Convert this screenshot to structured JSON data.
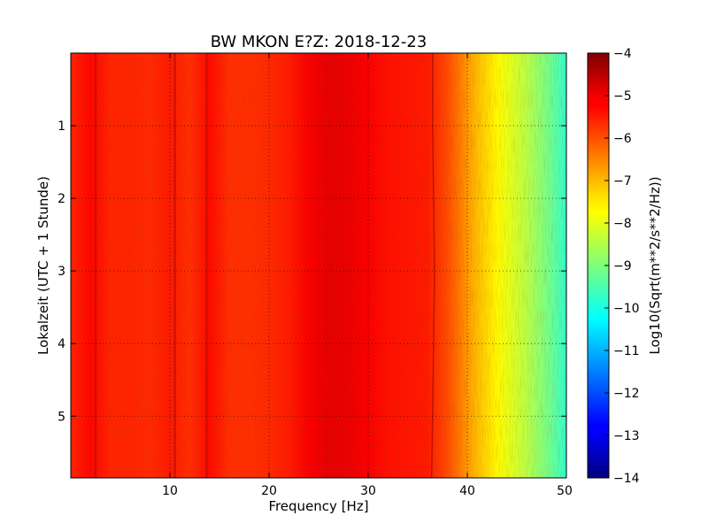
{
  "chart_data": {
    "type": "heatmap",
    "title": "BW MKON E?Z: 2018-12-23",
    "xlabel": "Frequency [Hz]",
    "ylabel": "Lokalzeit (UTC + 1 Stunde)",
    "colorbar_label": "Log10(Sqrt(m**2/s**2/Hz))",
    "colormap": "jet",
    "xlim": [
      0,
      50
    ],
    "ylim": [
      5.85,
      0
    ],
    "x_ticks": [
      10,
      20,
      30,
      40,
      50
    ],
    "y_ticks": [
      1,
      2,
      3,
      4,
      5
    ],
    "color_range": [
      -14,
      -4
    ],
    "colorbar_ticks": [
      -4,
      -5,
      -6,
      -7,
      -8,
      -9,
      -10,
      -11,
      -12,
      -13,
      -14
    ],
    "grid": true,
    "spectrum_profile": {
      "frequency_hz": [
        0,
        2,
        4,
        6,
        8,
        10,
        12,
        14,
        16,
        18,
        20,
        22,
        24,
        26,
        28,
        30,
        32,
        34,
        36,
        38,
        39,
        40,
        41,
        42,
        43,
        44,
        45,
        46,
        47,
        48,
        49,
        50
      ],
      "log10_amplitude": [
        -5.6,
        -5.3,
        -5.6,
        -5.6,
        -5.65,
        -5.5,
        -5.7,
        -5.35,
        -5.7,
        -5.7,
        -5.65,
        -5.5,
        -5.2,
        -5.0,
        -5.05,
        -5.2,
        -5.4,
        -5.45,
        -5.5,
        -6.0,
        -6.35,
        -6.75,
        -7.1,
        -7.4,
        -7.7,
        -7.95,
        -8.2,
        -8.45,
        -8.75,
        -9.05,
        -9.4,
        -9.8
      ]
    },
    "spectral_lines_hz": [
      2.5,
      10.5,
      13.7
    ],
    "drift_line": {
      "time_h": [
        0,
        1,
        2,
        3,
        4,
        5,
        5.85
      ],
      "frequency_hz": [
        36.5,
        36.5,
        36.6,
        36.7,
        36.6,
        36.5,
        36.4
      ]
    }
  }
}
